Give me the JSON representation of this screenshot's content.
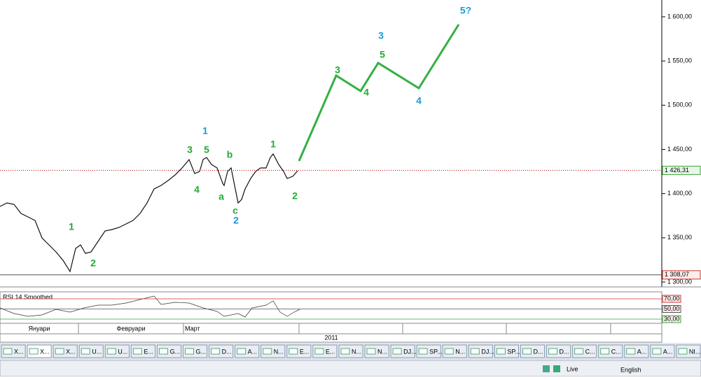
{
  "price_axis": {
    "ticks": [
      {
        "value": 1600,
        "label": "1 600,00"
      },
      {
        "value": 1550,
        "label": "1 550,00"
      },
      {
        "value": 1500,
        "label": "1 500,00"
      },
      {
        "value": 1450,
        "label": "1 450,00"
      },
      {
        "value": 1400,
        "label": "1 400,00"
      },
      {
        "value": 1350,
        "label": "1 350,00"
      },
      {
        "value": 1300,
        "label": "1 300,00"
      }
    ],
    "last": {
      "value": 1426.31,
      "label": "1 426,31"
    },
    "low": {
      "value": 1308.07,
      "label": "1 308,07"
    }
  },
  "wave_labels": [
    {
      "text": "1",
      "color": "#22aa33"
    },
    {
      "text": "2",
      "color": "#22aa33"
    },
    {
      "text": "3",
      "color": "#22aa33"
    },
    {
      "text": "5",
      "color": "#22aa33"
    },
    {
      "text": "4",
      "color": "#22aa33"
    },
    {
      "text": "1",
      "color": "#1a9ad6"
    },
    {
      "text": "b",
      "color": "#22aa33"
    },
    {
      "text": "a",
      "color": "#22aa33"
    },
    {
      "text": "c",
      "color": "#22aa33"
    },
    {
      "text": "2",
      "color": "#1a9ad6"
    },
    {
      "text": "1",
      "color": "#22aa33"
    },
    {
      "text": "2",
      "color": "#22aa33"
    },
    {
      "text": "3",
      "color": "#22aa33"
    },
    {
      "text": "4",
      "color": "#22aa33"
    },
    {
      "text": "5",
      "color": "#22aa33"
    },
    {
      "text": "3",
      "color": "#1a9ad6"
    },
    {
      "text": "4",
      "color": "#1a9ad6"
    },
    {
      "text": "5?",
      "color": "#1a9ad6"
    }
  ],
  "rsi": {
    "title": "RSI 14 Smoothed",
    "levels": [
      {
        "value": 70,
        "label": "70,00"
      },
      {
        "value": 50,
        "label": "50,00"
      },
      {
        "value": 30,
        "label": "30,00"
      }
    ]
  },
  "time_axis": {
    "months": [
      "Януари",
      "Февруари",
      "Март"
    ],
    "year": "2011"
  },
  "tabs": [
    "X...",
    "X...",
    "X...",
    "U...",
    "U...",
    "E...",
    "G...",
    "G...",
    "D...",
    "A...",
    "N...",
    "E...",
    "E...",
    "N...",
    "N...",
    "DJ...",
    "SP...",
    "N...",
    "DJ...",
    "SP...",
    "D...",
    "D...",
    "C...",
    "C...",
    "A...",
    "A...",
    "NI..."
  ],
  "status": {
    "mode": "Live",
    "language": "English"
  }
}
